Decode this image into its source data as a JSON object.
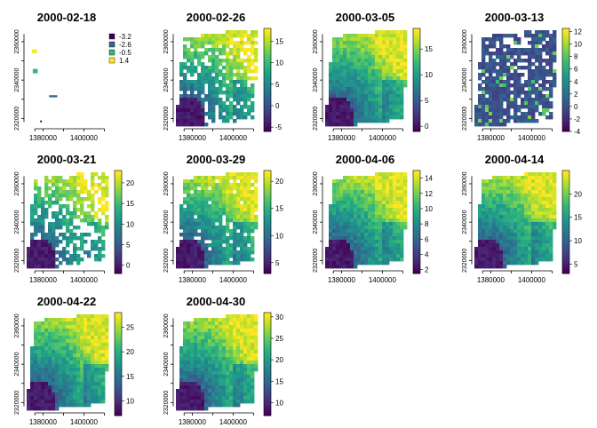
{
  "chart_data": [
    {
      "type": "heatmap",
      "title": "2000-02-18",
      "xticks": [
        1380000,
        1400000
      ],
      "yticks": [
        2320000,
        2340000,
        2360000
      ],
      "xlim": [
        1372000,
        1412000
      ],
      "ylim": [
        2316000,
        2366000
      ],
      "legend_type": "categorical",
      "legend": [
        {
          "label": "-3.2",
          "color": "#440154"
        },
        {
          "label": "-2.6",
          "color": "#31688e"
        },
        {
          "label": "-0.5",
          "color": "#35b779"
        },
        {
          "label": "1.4",
          "color": "#fde725"
        }
      ],
      "patches": [
        {
          "x": 1374500,
          "y": 2354000,
          "w": 2600,
          "h": 2000,
          "value": 1.4
        },
        {
          "x": 1375000,
          "y": 2343500,
          "w": 2400,
          "h": 2300,
          "value": -0.5
        },
        {
          "x": 1383000,
          "y": 2331000,
          "w": 4000,
          "h": 1100,
          "value": -2.6
        },
        {
          "x": 1378600,
          "y": 2318500,
          "w": 400,
          "h": 400,
          "value": -3.2
        }
      ]
    },
    {
      "type": "heatmap",
      "title": "2000-02-26",
      "xticks": [
        1380000,
        1400000
      ],
      "yticks": [
        2320000,
        2340000,
        2360000
      ],
      "xlim": [
        1372000,
        1412000
      ],
      "ylim": [
        2316000,
        2366000
      ],
      "value_range": [
        -6,
        18
      ],
      "colorbar_ticks": [
        -5,
        0,
        5,
        10,
        15
      ],
      "coverage": 0.78,
      "pattern": "gradient-sw-low"
    },
    {
      "type": "heatmap",
      "title": "2000-03-05",
      "xticks": [
        1380000,
        1400000
      ],
      "yticks": [
        2320000,
        2340000,
        2360000
      ],
      "xlim": [
        1372000,
        1412000
      ],
      "ylim": [
        2316000,
        2366000
      ],
      "value_range": [
        -1,
        19
      ],
      "colorbar_ticks": [
        0,
        5,
        10,
        15
      ],
      "coverage": 1.0,
      "pattern": "gradient-sw-low"
    },
    {
      "type": "heatmap",
      "title": "2000-03-13",
      "xticks": [
        1380000,
        1400000
      ],
      "yticks": [
        2320000,
        2340000,
        2360000
      ],
      "xlim": [
        1372000,
        1412000
      ],
      "ylim": [
        2316000,
        2366000
      ],
      "value_range": [
        -4,
        12.5
      ],
      "colorbar_ticks": [
        -4,
        -2,
        0,
        2,
        4,
        6,
        8,
        10,
        12
      ],
      "coverage": 0.8,
      "pattern": "mostly-low"
    },
    {
      "type": "heatmap",
      "title": "2000-03-21",
      "xticks": [
        1380000,
        1400000
      ],
      "yticks": [
        2320000,
        2340000,
        2360000
      ],
      "xlim": [
        1372000,
        1412000
      ],
      "ylim": [
        2316000,
        2366000
      ],
      "value_range": [
        -2,
        23
      ],
      "colorbar_ticks": [
        0,
        5,
        10,
        15,
        20
      ],
      "coverage": 0.62,
      "pattern": "gradient-sw-low"
    },
    {
      "type": "heatmap",
      "title": "2000-03-29",
      "xticks": [
        1380000,
        1400000
      ],
      "yticks": [
        2320000,
        2340000,
        2360000
      ],
      "xlim": [
        1372000,
        1412000
      ],
      "ylim": [
        2316000,
        2366000
      ],
      "value_range": [
        3,
        22
      ],
      "colorbar_ticks": [
        5,
        10,
        15,
        20
      ],
      "coverage": 0.92,
      "pattern": "gradient-sw-low"
    },
    {
      "type": "heatmap",
      "title": "2000-04-06",
      "xticks": [
        1380000,
        1400000
      ],
      "yticks": [
        2320000,
        2340000,
        2360000
      ],
      "xlim": [
        1372000,
        1412000
      ],
      "ylim": [
        2316000,
        2366000
      ],
      "value_range": [
        1.5,
        15
      ],
      "colorbar_ticks": [
        2,
        4,
        6,
        8,
        10,
        12,
        14
      ],
      "coverage": 1.0,
      "pattern": "gradient-sw-low"
    },
    {
      "type": "heatmap",
      "title": "2000-04-14",
      "xticks": [
        1380000,
        1400000
      ],
      "yticks": [
        2320000,
        2340000,
        2360000
      ],
      "xlim": [
        1372000,
        1412000
      ],
      "ylim": [
        2316000,
        2366000
      ],
      "value_range": [
        3,
        25
      ],
      "colorbar_ticks": [
        5,
        10,
        15,
        20
      ],
      "coverage": 1.0,
      "pattern": "gradient-sw-low"
    },
    {
      "type": "heatmap",
      "title": "2000-04-22",
      "xticks": [
        1380000,
        1400000
      ],
      "yticks": [
        2320000,
        2340000,
        2360000
      ],
      "xlim": [
        1372000,
        1412000
      ],
      "ylim": [
        2316000,
        2366000
      ],
      "value_range": [
        7,
        28
      ],
      "colorbar_ticks": [
        10,
        15,
        20,
        25
      ],
      "coverage": 1.0,
      "pattern": "gradient-sw-low"
    },
    {
      "type": "heatmap",
      "title": "2000-04-30",
      "xticks": [
        1380000,
        1400000
      ],
      "yticks": [
        2320000,
        2340000,
        2360000
      ],
      "xlim": [
        1372000,
        1412000
      ],
      "ylim": [
        2316000,
        2366000
      ],
      "value_range": [
        7,
        31
      ],
      "colorbar_ticks": [
        10,
        15,
        20,
        25,
        30
      ],
      "coverage": 1.0,
      "pattern": "gradient-sw-low"
    }
  ],
  "colormap": "viridis",
  "colors": {
    "missing": "#ffffff",
    "axis": "#000000"
  }
}
